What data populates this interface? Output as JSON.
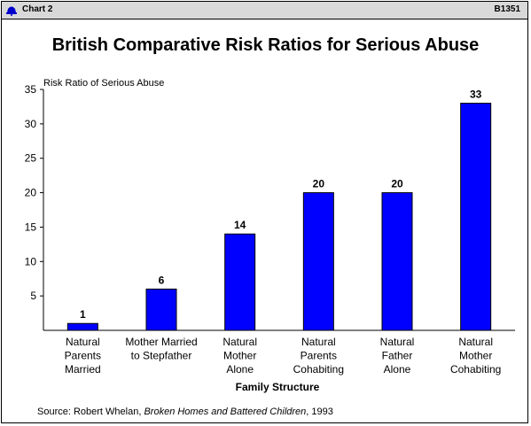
{
  "header": {
    "chart_label": "Chart 2",
    "code": "B1351",
    "logo_icon": "bell-icon"
  },
  "source": {
    "prefix": "Source: Robert Whelan, ",
    "book": "Broken Homes and Battered Children",
    "suffix": ", 1993"
  },
  "colors": {
    "bar": "#0000ff",
    "header_bg": "#d9d9d9"
  },
  "chart_data": {
    "type": "bar",
    "title": "British Comparative Risk Ratios for Serious Abuse",
    "ylabel": "Risk Ratio of Serious Abuse",
    "xlabel": "Family Structure",
    "ylim": [
      0,
      35
    ],
    "yticks": [
      5,
      10,
      15,
      20,
      25,
      30,
      35
    ],
    "grid": false,
    "categories": [
      [
        "Natural",
        "Parents",
        "Married"
      ],
      [
        "Mother Married",
        "to Stepfather"
      ],
      [
        "Natural",
        "Mother",
        "Alone"
      ],
      [
        "Natural",
        "Parents",
        "Cohabiting"
      ],
      [
        "Natural",
        "Father",
        "Alone"
      ],
      [
        "Natural",
        "Mother",
        "Cohabiting"
      ]
    ],
    "values": [
      1,
      6,
      14,
      20,
      20,
      33
    ],
    "data_labels": [
      "1",
      "6",
      "14",
      "20",
      "20",
      "33"
    ]
  }
}
